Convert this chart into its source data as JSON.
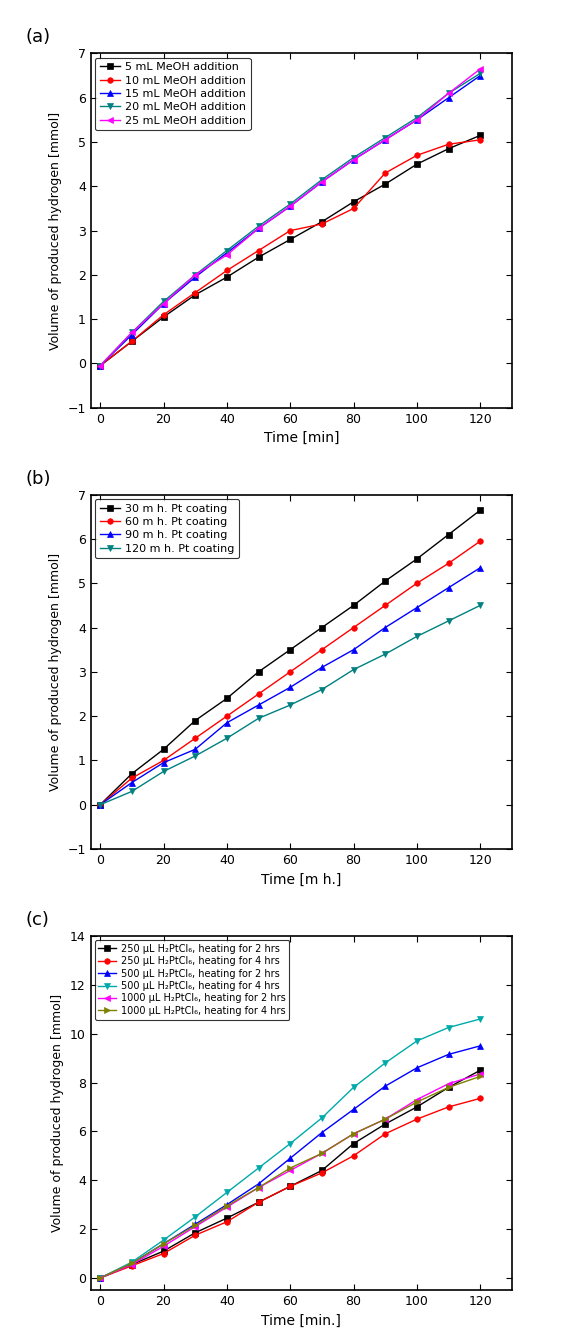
{
  "panel_a": {
    "title": "(a)",
    "xlabel": "Time [min]",
    "ylabel": "Volume of produced hydrogen [mmol]",
    "xlim": [
      -3,
      130
    ],
    "ylim": [
      -1,
      7
    ],
    "xticks": [
      0,
      20,
      40,
      60,
      80,
      100,
      120
    ],
    "yticks": [
      -1,
      0,
      1,
      2,
      3,
      4,
      5,
      6,
      7
    ],
    "series": [
      {
        "label": "5 mL MeOH addition",
        "color": "#000000",
        "marker": "s",
        "x": [
          0,
          10,
          20,
          30,
          40,
          50,
          60,
          70,
          80,
          90,
          100,
          110,
          120
        ],
        "y": [
          -0.05,
          0.5,
          1.05,
          1.55,
          1.95,
          2.4,
          2.8,
          3.2,
          3.65,
          4.05,
          4.5,
          4.85,
          5.15
        ]
      },
      {
        "label": "10 mL MeOH addition",
        "color": "#ff0000",
        "marker": "o",
        "x": [
          0,
          10,
          20,
          30,
          40,
          50,
          60,
          70,
          80,
          90,
          100,
          110,
          120
        ],
        "y": [
          -0.05,
          0.5,
          1.1,
          1.6,
          2.1,
          2.55,
          3.0,
          3.15,
          3.5,
          4.3,
          4.7,
          4.95,
          5.05
        ]
      },
      {
        "label": "15 mL MeOH addition",
        "color": "#0000ff",
        "marker": "^",
        "x": [
          0,
          10,
          20,
          30,
          40,
          50,
          60,
          70,
          80,
          90,
          100,
          110,
          120
        ],
        "y": [
          -0.05,
          0.65,
          1.35,
          1.95,
          2.5,
          3.05,
          3.55,
          4.1,
          4.6,
          5.05,
          5.5,
          6.0,
          6.5
        ]
      },
      {
        "label": "20 mL MeOH addition",
        "color": "#008080",
        "marker": "v",
        "x": [
          0,
          10,
          20,
          30,
          40,
          50,
          60,
          70,
          80,
          90,
          100,
          110,
          120
        ],
        "y": [
          -0.05,
          0.7,
          1.4,
          2.0,
          2.55,
          3.1,
          3.6,
          4.15,
          4.65,
          5.1,
          5.55,
          6.1,
          6.55
        ]
      },
      {
        "label": "25 mL MeOH addition",
        "color": "#ff00ff",
        "marker": "<",
        "x": [
          0,
          10,
          20,
          30,
          40,
          50,
          60,
          70,
          80,
          90,
          100,
          110,
          120
        ],
        "y": [
          -0.05,
          0.7,
          1.35,
          2.0,
          2.45,
          3.05,
          3.55,
          4.1,
          4.6,
          5.05,
          5.5,
          6.1,
          6.65
        ]
      }
    ]
  },
  "panel_b": {
    "title": "(b)",
    "xlabel": "Time [m h.]",
    "ylabel": "Volume of produced hydrogen [mmol]",
    "xlim": [
      -3,
      130
    ],
    "ylim": [
      -1,
      7
    ],
    "xticks": [
      0,
      20,
      40,
      60,
      80,
      100,
      120
    ],
    "yticks": [
      -1,
      0,
      1,
      2,
      3,
      4,
      5,
      6,
      7
    ],
    "series": [
      {
        "label": "30 m h. Pt coating",
        "color": "#000000",
        "marker": "s",
        "x": [
          0,
          10,
          20,
          30,
          40,
          50,
          60,
          70,
          80,
          90,
          100,
          110,
          120
        ],
        "y": [
          0.0,
          0.7,
          1.25,
          1.9,
          2.4,
          3.0,
          3.5,
          4.0,
          4.5,
          5.05,
          5.55,
          6.1,
          6.65
        ]
      },
      {
        "label": "60 m h. Pt coating",
        "color": "#ff0000",
        "marker": "o",
        "x": [
          0,
          10,
          20,
          30,
          40,
          50,
          60,
          70,
          80,
          90,
          100,
          110,
          120
        ],
        "y": [
          0.0,
          0.6,
          1.0,
          1.5,
          2.0,
          2.5,
          3.0,
          3.5,
          4.0,
          4.5,
          5.0,
          5.45,
          5.95
        ]
      },
      {
        "label": "90 m h. Pt coating",
        "color": "#0000ff",
        "marker": "^",
        "x": [
          0,
          10,
          20,
          30,
          40,
          50,
          60,
          70,
          80,
          90,
          100,
          110,
          120
        ],
        "y": [
          0.0,
          0.5,
          0.95,
          1.25,
          1.85,
          2.25,
          2.65,
          3.1,
          3.5,
          4.0,
          4.45,
          4.9,
          5.35
        ]
      },
      {
        "label": "120 m h. Pt coating",
        "color": "#008080",
        "marker": "v",
        "x": [
          0,
          10,
          20,
          30,
          40,
          50,
          60,
          70,
          80,
          90,
          100,
          110,
          120
        ],
        "y": [
          0.0,
          0.3,
          0.75,
          1.1,
          1.5,
          1.95,
          2.25,
          2.6,
          3.05,
          3.4,
          3.8,
          4.15,
          4.5
        ]
      }
    ]
  },
  "panel_c": {
    "title": "(c)",
    "xlabel": "Time [min.]",
    "ylabel": "Volume of produced hydrogen [mmol]",
    "xlim": [
      -3,
      130
    ],
    "ylim": [
      -0.5,
      14
    ],
    "xticks": [
      0,
      20,
      40,
      60,
      80,
      100,
      120
    ],
    "yticks": [
      0,
      2,
      4,
      6,
      8,
      10,
      12,
      14
    ],
    "series": [
      {
        "label": "250 μL H₂PtCl₆, heating for 2 hrs",
        "color": "#000000",
        "marker": "s",
        "x": [
          0,
          10,
          20,
          30,
          40,
          50,
          60,
          70,
          80,
          90,
          100,
          110,
          120
        ],
        "y": [
          0.0,
          0.55,
          1.1,
          1.85,
          2.45,
          3.1,
          3.75,
          4.4,
          5.5,
          6.3,
          7.0,
          7.8,
          8.5
        ]
      },
      {
        "label": "250 μL H₂PtCl₆, heating for 4 hrs",
        "color": "#ff0000",
        "marker": "o",
        "x": [
          0,
          10,
          20,
          30,
          40,
          50,
          60,
          70,
          80,
          90,
          100,
          110,
          120
        ],
        "y": [
          0.0,
          0.5,
          1.0,
          1.75,
          2.3,
          3.1,
          3.75,
          4.3,
          5.0,
          5.9,
          6.5,
          7.0,
          7.35
        ]
      },
      {
        "label": "500 μL H₂PtCl₆, heating for 2 hrs",
        "color": "#0000ff",
        "marker": "^",
        "x": [
          0,
          10,
          20,
          30,
          40,
          50,
          60,
          70,
          80,
          90,
          100,
          110,
          120
        ],
        "y": [
          0.0,
          0.6,
          1.4,
          2.2,
          3.0,
          3.85,
          4.9,
          5.95,
          6.9,
          7.85,
          8.6,
          9.15,
          9.5
        ]
      },
      {
        "label": "500 μL H₂PtCl₆, heating for 4 hrs",
        "color": "#00aaaa",
        "marker": "v",
        "x": [
          0,
          10,
          20,
          30,
          40,
          50,
          60,
          70,
          80,
          90,
          100,
          110,
          120
        ],
        "y": [
          0.0,
          0.65,
          1.55,
          2.5,
          3.5,
          4.5,
          5.5,
          6.55,
          7.8,
          8.8,
          9.7,
          10.25,
          10.6
        ]
      },
      {
        "label": "1000 μL H₂PtCl₆, heating for 2 hrs",
        "color": "#ff00ff",
        "marker": "<",
        "x": [
          0,
          10,
          20,
          30,
          40,
          50,
          60,
          70,
          80,
          90,
          100,
          110,
          120
        ],
        "y": [
          0.0,
          0.55,
          1.3,
          2.1,
          2.9,
          3.7,
          4.4,
          5.1,
          5.9,
          6.5,
          7.3,
          7.95,
          8.35
        ]
      },
      {
        "label": "1000 μL H₂PtCl₆, heating for 4 hrs",
        "color": "#808000",
        "marker": ">",
        "x": [
          0,
          10,
          20,
          30,
          40,
          50,
          60,
          70,
          80,
          90,
          100,
          110,
          120
        ],
        "y": [
          0.0,
          0.6,
          1.4,
          2.15,
          2.95,
          3.7,
          4.5,
          5.1,
          5.9,
          6.5,
          7.2,
          7.8,
          8.25
        ]
      }
    ]
  },
  "background_color": "#ffffff",
  "figure_width": 5.85,
  "figure_height": 13.37
}
